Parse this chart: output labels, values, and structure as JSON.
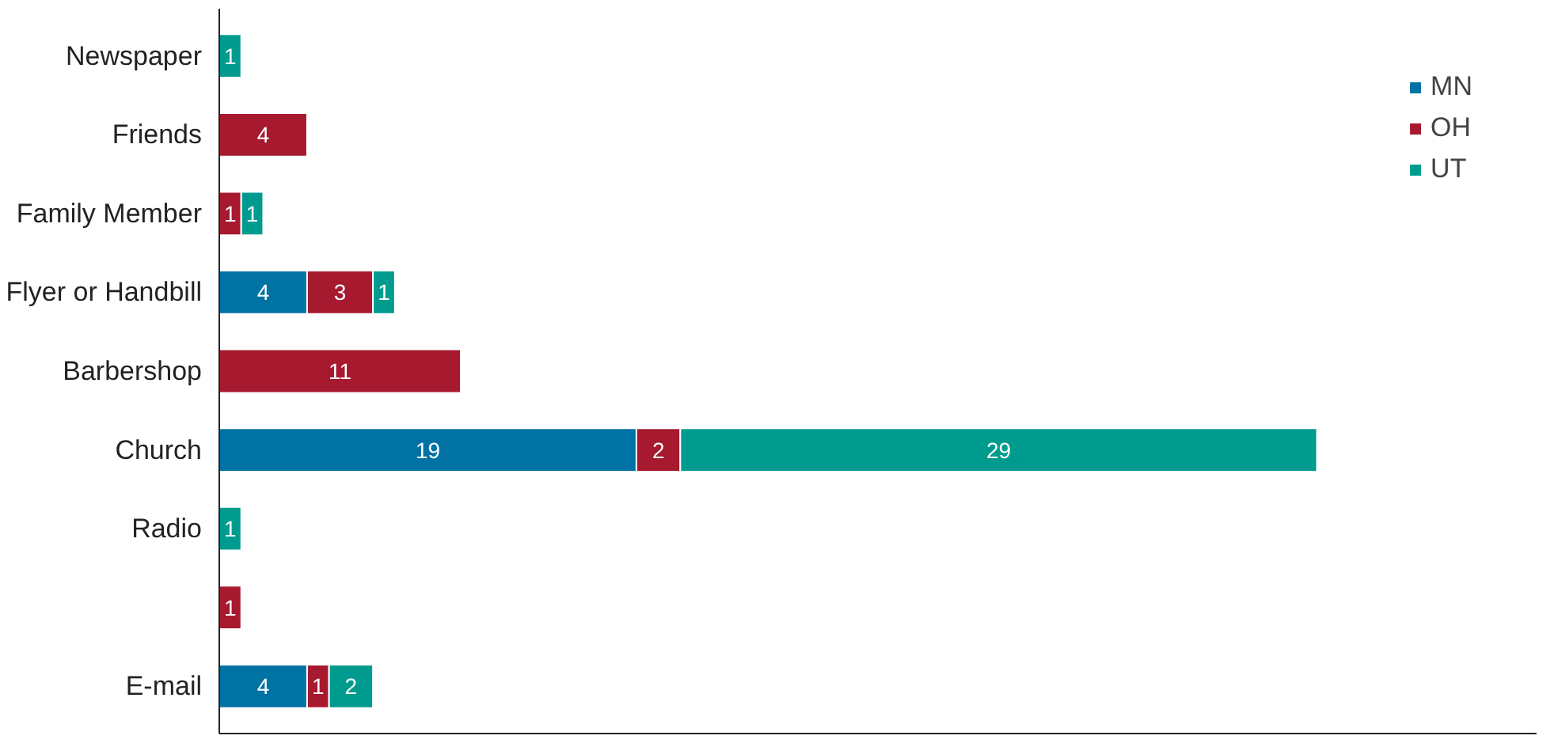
{
  "chart_data": {
    "type": "bar",
    "orientation": "horizontal",
    "stacked": true,
    "data_labels": true,
    "legend": "top right",
    "grid": false,
    "categories": [
      "Newspaper",
      "Friends",
      "Family Member",
      "Flyer or Handbill",
      "Barbershop",
      "Church",
      "Radio",
      null,
      "E-mail"
    ],
    "series": [
      {
        "name": "MN",
        "color": "#0072a3",
        "values": [
          null,
          null,
          null,
          4,
          null,
          19,
          null,
          null,
          4
        ]
      },
      {
        "name": "OH",
        "color": "#a6192e",
        "values": [
          null,
          4,
          1,
          3,
          11,
          2,
          null,
          1,
          1
        ]
      },
      {
        "name": "UT",
        "color": "#009b8f",
        "values": [
          1,
          null,
          1,
          1,
          null,
          29,
          1,
          null,
          2
        ]
      }
    ]
  }
}
